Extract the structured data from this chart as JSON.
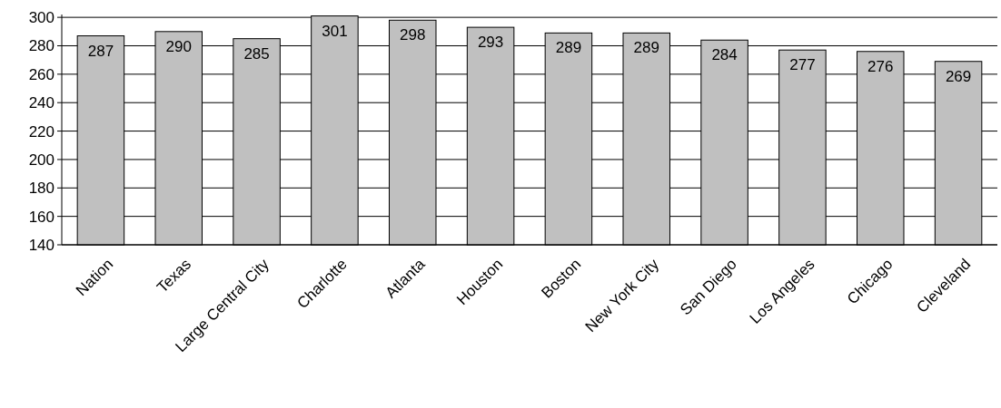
{
  "chart_data": {
    "type": "bar",
    "categories": [
      "Nation",
      "Texas",
      "Large Central City",
      "Charlotte",
      "Atlanta",
      "Houston",
      "Boston",
      "New York City",
      "San Diego",
      "Los Angeles",
      "Chicago",
      "Cleveland"
    ],
    "values": [
      287,
      290,
      285,
      301,
      298,
      293,
      289,
      289,
      284,
      277,
      276,
      269
    ],
    "color": "#c0c0c0",
    "ylim": [
      140,
      302
    ],
    "yticks": [
      140,
      160,
      180,
      200,
      220,
      240,
      260,
      280,
      300
    ],
    "grid": "y",
    "data_labels": true
  }
}
